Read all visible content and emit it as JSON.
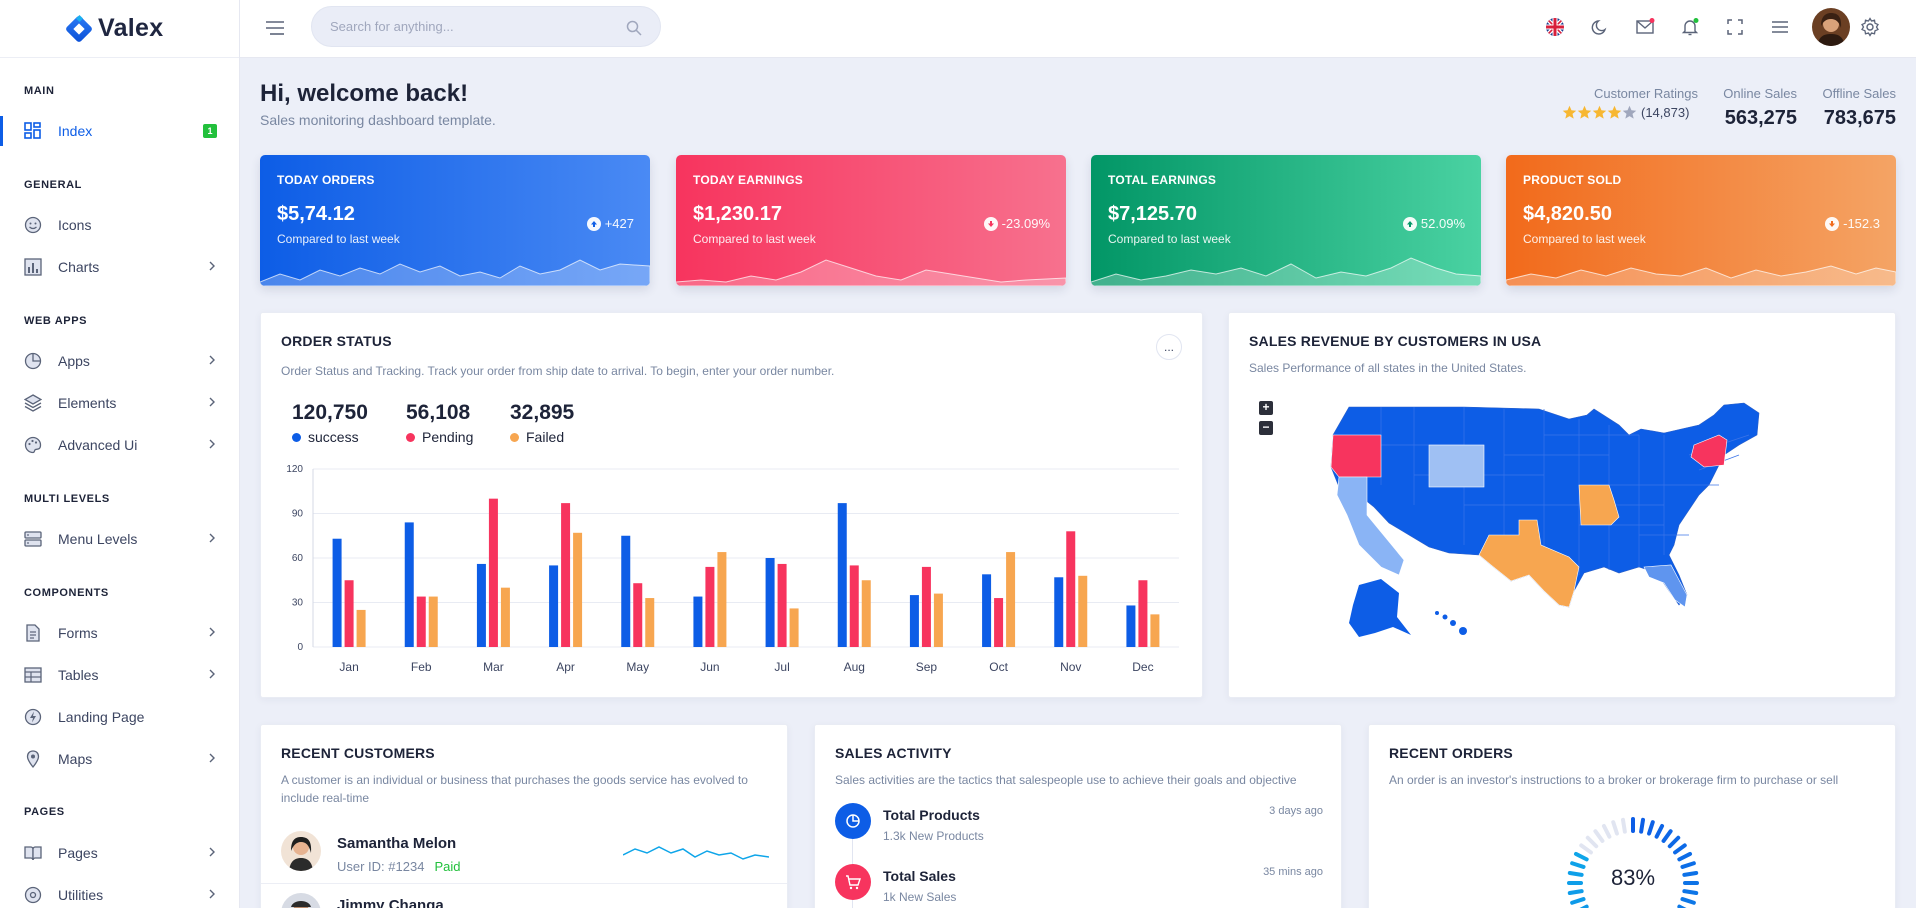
{
  "app": {
    "name": "Valex"
  },
  "sidebar": {
    "categories": [
      "MAIN",
      "GENERAL",
      "WEB APPS",
      "MULTI LEVELS",
      "COMPONENTS",
      "PAGES"
    ],
    "items": [
      {
        "label": "Index",
        "badge": "1",
        "icon": "dashboard-grid-icon",
        "active": true
      },
      {
        "label": "Icons",
        "icon": "smiley-icon"
      },
      {
        "label": "Charts",
        "icon": "bar-chart-icon"
      },
      {
        "label": "Apps",
        "icon": "pie-icon"
      },
      {
        "label": "Elements",
        "icon": "layers-icon"
      },
      {
        "label": "Advanced Ui",
        "icon": "palette-icon"
      },
      {
        "label": "Menu Levels",
        "icon": "server-icon"
      },
      {
        "label": "Forms",
        "icon": "document-icon"
      },
      {
        "label": "Tables",
        "icon": "table-icon"
      },
      {
        "label": "Landing Page",
        "icon": "bolt-icon"
      },
      {
        "label": "Maps",
        "icon": "map-pin-icon"
      },
      {
        "label": "Pages",
        "icon": "book-icon"
      },
      {
        "label": "Utilities",
        "icon": "settings-icon"
      }
    ]
  },
  "header": {
    "search_placeholder": "Search for anything...",
    "icons": [
      "uk-flag-icon",
      "moon-icon",
      "mail-icon",
      "bell-icon",
      "fullscreen-icon",
      "menu-icon",
      "avatar",
      "gear-icon"
    ]
  },
  "welcome": {
    "title": "Hi, welcome back!",
    "subtitle": "Sales monitoring dashboard template.",
    "ratings_label": "Customer Ratings",
    "ratings_count": "(14,873)",
    "ratings_stars": 4,
    "online_label": "Online Sales",
    "online_value": "563,275",
    "offline_label": "Offline Sales",
    "offline_value": "783,675"
  },
  "kpis": [
    {
      "title": "TODAY ORDERS",
      "value": "$5,74.12",
      "compare": "Compared to last week",
      "delta": "+427",
      "direction": "up"
    },
    {
      "title": "TODAY EARNINGS",
      "value": "$1,230.17",
      "compare": "Compared to last week",
      "delta": "-23.09%",
      "direction": "down"
    },
    {
      "title": "TOTAL EARNINGS",
      "value": "$7,125.70",
      "compare": "Compared to last week",
      "delta": "52.09%",
      "direction": "up"
    },
    {
      "title": "PRODUCT SOLD",
      "value": "$4,820.50",
      "compare": "Compared to last week",
      "delta": "-152.3",
      "direction": "down"
    }
  ],
  "order_status": {
    "title": "ORDER STATUS",
    "subtitle": "Order Status and Tracking. Track your order from ship date to arrival. To begin, enter your order number.",
    "more": "...",
    "stats": [
      {
        "value": "120,750",
        "label": "success",
        "color": "#0d5de6"
      },
      {
        "value": "56,108",
        "label": "Pending",
        "color": "#f7345e"
      },
      {
        "value": "32,895",
        "label": "Failed",
        "color": "#f7a650"
      }
    ]
  },
  "chart_data": {
    "type": "bar",
    "categories": [
      "Jan",
      "Feb",
      "Mar",
      "Apr",
      "May",
      "Jun",
      "Jul",
      "Aug",
      "Sep",
      "Oct",
      "Nov",
      "Dec"
    ],
    "series": [
      {
        "name": "success",
        "color": "#0d5de6",
        "values": [
          73,
          84,
          56,
          55,
          75,
          34,
          60,
          97,
          35,
          49,
          47,
          28
        ]
      },
      {
        "name": "Pending",
        "color": "#f7345e",
        "values": [
          45,
          34,
          100,
          97,
          43,
          54,
          56,
          55,
          54,
          33,
          78,
          45
        ]
      },
      {
        "name": "Failed",
        "color": "#f7a650",
        "values": [
          25,
          34,
          40,
          77,
          33,
          64,
          26,
          45,
          36,
          64,
          48,
          22
        ]
      }
    ],
    "yticks": [
      0,
      30,
      60,
      90,
      120
    ],
    "ylim": [
      0,
      120
    ],
    "grid": true
  },
  "map": {
    "title": "SALES REVENUE BY CUSTOMERS IN USA",
    "subtitle": "Sales Performance of all states in the United States.",
    "zoom_in": "+",
    "zoom_out": "−"
  },
  "recent_customers": {
    "title": "RECENT CUSTOMERS",
    "subtitle": "A customer is an individual or business that purchases the goods service has evolved to include real-time",
    "items": [
      {
        "name": "Samantha Melon",
        "user_id": "User ID: #1234",
        "status": "Paid"
      },
      {
        "name": "Jimmy Changa"
      }
    ]
  },
  "sales_activity": {
    "title": "SALES ACTIVITY",
    "subtitle": "Sales activities are the tactics that salespeople use to achieve their goals and objective",
    "items": [
      {
        "title": "Total Products",
        "sub": "1.3k New Products",
        "time": "3 days ago",
        "icon": "pie-chart-icon",
        "color": "#0d5de6"
      },
      {
        "title": "Total Sales",
        "sub": "1k New Sales",
        "time": "35 mins ago",
        "icon": "cart-icon",
        "color": "#f7345e"
      }
    ]
  },
  "recent_orders": {
    "title": "RECENT ORDERS",
    "subtitle": "An order is an investor's instructions to a broker or brokerage firm to purchase or sell",
    "progress_label": "83%",
    "progress_value": 0.83
  }
}
